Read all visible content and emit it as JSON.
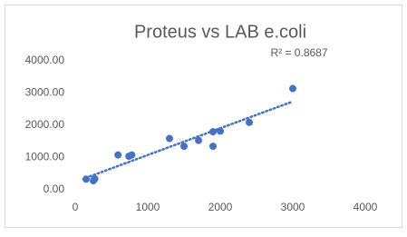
{
  "chart_data": {
    "type": "scatter",
    "title": "Proteus vs LAB e.coli",
    "annotation": "R² = 0.8687",
    "trendline": "linear",
    "color": "#4472c4",
    "x": [
      150,
      250,
      270,
      590,
      740,
      780,
      1300,
      1500,
      1700,
      1900,
      1900,
      2000,
      2400,
      3000
    ],
    "values": [
      330,
      280,
      340,
      1080,
      1040,
      1080,
      1590,
      1350,
      1530,
      1800,
      1350,
      1820,
      2090,
      3140
    ],
    "xlim": [
      0,
      4000
    ],
    "xticks": [
      0,
      1000,
      2000,
      3000,
      4000
    ],
    "ylim": [
      0,
      4000
    ],
    "yticks": [
      {
        "value": 0,
        "label": "0.00"
      },
      {
        "value": 1000,
        "label": "1000.00"
      },
      {
        "value": 2000,
        "label": "2000.00"
      },
      {
        "value": 3000,
        "label": "3000.00"
      },
      {
        "value": 4000,
        "label": "4000.00"
      }
    ],
    "grid": false
  }
}
